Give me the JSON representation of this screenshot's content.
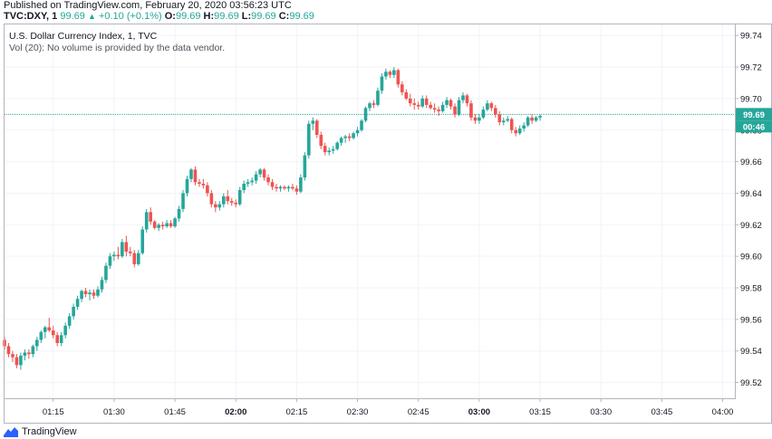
{
  "header": {
    "published": "Published on TradingView.com, February 20, 2020 03:56:23 UTC",
    "symbol": "TVC:DXY, 1",
    "last": "99.69",
    "change": "+0.10 (+0.1%)",
    "o_label": "O:",
    "o_value": "99.69",
    "h_label": "H:",
    "h_value": "99.69",
    "l_label": "L:",
    "l_value": "99.69",
    "c_label": "C:",
    "c_value": "99.69"
  },
  "legend": {
    "title": "U.S. Dollar Currency Index, 1, TVC",
    "volume_note": "Vol (20): No volume is provided by the data vendor."
  },
  "price_badge": {
    "price": "99.69",
    "countdown": "00:46"
  },
  "footer": {
    "brand": "TradingView",
    "logo_icon": "tradingview-logo-icon"
  },
  "colors": {
    "up": "#26a69a",
    "down": "#ef5350",
    "grid": "#f0f3fa",
    "price_line": "#26a69a"
  },
  "chart_data": {
    "type": "candlestick",
    "y_ticks": [
      "99.74",
      "99.72",
      "99.70",
      "99.68",
      "99.66",
      "99.64",
      "99.62",
      "99.60",
      "99.58",
      "99.56",
      "99.54",
      "99.52"
    ],
    "x_ticks": [
      "01:15",
      "01:30",
      "01:45",
      "02:00",
      "02:15",
      "02:30",
      "02:45",
      "03:00",
      "03:15",
      "03:30",
      "03:45",
      "04:00"
    ],
    "ylim": [
      99.51,
      99.747
    ],
    "x_range_minutes": [
      63,
      243
    ],
    "tick_minutes": [
      75,
      90,
      105,
      120,
      135,
      150,
      165,
      180,
      195,
      210,
      225,
      240
    ],
    "grid": true,
    "last_price": 99.69,
    "candles": [
      [
        63,
        99.547,
        99.549,
        99.541,
        99.543
      ],
      [
        64,
        99.543,
        99.545,
        99.536,
        99.538
      ],
      [
        65,
        99.538,
        99.54,
        99.533,
        99.536
      ],
      [
        66,
        99.536,
        99.538,
        99.529,
        99.531
      ],
      [
        67,
        99.531,
        99.539,
        99.528,
        99.537
      ],
      [
        68,
        99.537,
        99.541,
        99.534,
        99.539
      ],
      [
        69,
        99.539,
        99.541,
        99.535,
        99.538
      ],
      [
        70,
        99.538,
        99.544,
        99.536,
        99.543
      ],
      [
        71,
        99.543,
        99.549,
        99.54,
        99.547
      ],
      [
        72,
        99.547,
        99.553,
        99.545,
        99.552
      ],
      [
        73,
        99.552,
        99.556,
        99.548,
        99.555
      ],
      [
        74,
        99.555,
        99.561,
        99.552,
        99.553
      ],
      [
        75,
        99.553,
        99.556,
        99.548,
        99.55
      ],
      [
        76,
        99.55,
        99.552,
        99.543,
        99.545
      ],
      [
        77,
        99.545,
        99.552,
        99.543,
        99.55
      ],
      [
        78,
        99.55,
        99.558,
        99.548,
        99.556
      ],
      [
        79,
        99.556,
        99.564,
        99.554,
        99.562
      ],
      [
        80,
        99.562,
        99.57,
        99.56,
        99.568
      ],
      [
        81,
        99.568,
        99.575,
        99.566,
        99.573
      ],
      [
        82,
        99.573,
        99.579,
        99.571,
        99.578
      ],
      [
        83,
        99.578,
        99.58,
        99.574,
        99.576
      ],
      [
        84,
        99.576,
        99.579,
        99.572,
        99.577
      ],
      [
        85,
        99.577,
        99.579,
        99.573,
        99.575
      ],
      [
        86,
        99.575,
        99.581,
        99.574,
        99.579
      ],
      [
        87,
        99.579,
        99.587,
        99.577,
        99.585
      ],
      [
        88,
        99.585,
        99.596,
        99.583,
        99.594
      ],
      [
        89,
        99.594,
        99.602,
        99.592,
        99.6
      ],
      [
        90,
        99.6,
        99.603,
        99.597,
        99.601
      ],
      [
        91,
        99.601,
        99.606,
        99.598,
        99.6
      ],
      [
        92,
        99.6,
        99.611,
        99.599,
        99.609
      ],
      [
        93,
        99.609,
        99.613,
        99.6,
        99.603
      ],
      [
        94,
        99.603,
        99.606,
        99.6,
        99.602
      ],
      [
        95,
        99.602,
        99.604,
        99.593,
        99.595
      ],
      [
        96,
        99.595,
        99.604,
        99.594,
        99.602
      ],
      [
        97,
        99.602,
        99.619,
        99.601,
        99.617
      ],
      [
        98,
        99.617,
        99.63,
        99.615,
        99.628
      ],
      [
        99,
        99.628,
        99.631,
        99.62,
        99.622
      ],
      [
        100,
        99.622,
        99.623,
        99.617,
        99.618
      ],
      [
        101,
        99.618,
        99.621,
        99.616,
        99.62
      ],
      [
        102,
        99.62,
        99.622,
        99.617,
        99.619
      ],
      [
        103,
        99.619,
        99.623,
        99.618,
        99.621
      ],
      [
        104,
        99.621,
        99.623,
        99.618,
        99.619
      ],
      [
        105,
        99.619,
        99.625,
        99.618,
        99.624
      ],
      [
        106,
        99.624,
        99.632,
        99.622,
        99.63
      ],
      [
        107,
        99.63,
        99.642,
        99.628,
        99.64
      ],
      [
        108,
        99.64,
        99.651,
        99.638,
        99.649
      ],
      [
        109,
        99.649,
        99.656,
        99.647,
        99.655
      ],
      [
        110,
        99.655,
        99.657,
        99.645,
        99.647
      ],
      [
        111,
        99.647,
        99.649,
        99.644,
        99.646
      ],
      [
        112,
        99.646,
        99.649,
        99.643,
        99.645
      ],
      [
        113,
        99.645,
        99.647,
        99.638,
        99.64
      ],
      [
        114,
        99.64,
        99.642,
        99.631,
        99.633
      ],
      [
        115,
        99.633,
        99.635,
        99.628,
        99.631
      ],
      [
        116,
        99.631,
        99.635,
        99.629,
        99.633
      ],
      [
        117,
        99.633,
        99.64,
        99.631,
        99.638
      ],
      [
        118,
        99.638,
        99.642,
        99.633,
        99.635
      ],
      [
        119,
        99.635,
        99.637,
        99.632,
        99.634
      ],
      [
        120,
        99.634,
        99.636,
        99.631,
        99.633
      ],
      [
        121,
        99.633,
        99.644,
        99.632,
        99.642
      ],
      [
        122,
        99.642,
        99.648,
        99.64,
        99.646
      ],
      [
        123,
        99.646,
        99.649,
        99.644,
        99.647
      ],
      [
        124,
        99.647,
        99.65,
        99.645,
        99.648
      ],
      [
        125,
        99.648,
        99.654,
        99.646,
        99.652
      ],
      [
        126,
        99.652,
        99.656,
        99.65,
        99.655
      ],
      [
        127,
        99.655,
        99.656,
        99.648,
        99.65
      ],
      [
        128,
        99.65,
        99.652,
        99.645,
        99.647
      ],
      [
        129,
        99.647,
        99.649,
        99.642,
        99.644
      ],
      [
        130,
        99.644,
        99.646,
        99.641,
        99.643
      ],
      [
        131,
        99.643,
        99.645,
        99.641,
        99.644
      ],
      [
        132,
        99.644,
        99.645,
        99.642,
        99.643
      ],
      [
        133,
        99.643,
        99.645,
        99.641,
        99.644
      ],
      [
        134,
        99.644,
        99.646,
        99.642,
        99.643
      ],
      [
        135,
        99.643,
        99.645,
        99.639,
        99.641
      ],
      [
        136,
        99.641,
        99.652,
        99.64,
        99.65
      ],
      [
        137,
        99.65,
        99.666,
        99.648,
        99.664
      ],
      [
        138,
        99.664,
        99.686,
        99.662,
        99.684
      ],
      [
        139,
        99.684,
        99.688,
        99.68,
        99.686
      ],
      [
        140,
        99.686,
        99.687,
        99.675,
        99.677
      ],
      [
        141,
        99.677,
        99.679,
        99.668,
        99.67
      ],
      [
        142,
        99.67,
        99.672,
        99.664,
        99.666
      ],
      [
        143,
        99.666,
        99.669,
        99.664,
        99.667
      ],
      [
        144,
        99.667,
        99.67,
        99.665,
        99.668
      ],
      [
        145,
        99.668,
        99.673,
        99.667,
        99.672
      ],
      [
        146,
        99.672,
        99.676,
        99.67,
        99.675
      ],
      [
        147,
        99.675,
        99.677,
        99.672,
        99.676
      ],
      [
        148,
        99.676,
        99.678,
        99.673,
        99.675
      ],
      [
        149,
        99.675,
        99.679,
        99.674,
        99.678
      ],
      [
        150,
        99.678,
        99.682,
        99.676,
        99.68
      ],
      [
        151,
        99.68,
        99.687,
        99.679,
        99.686
      ],
      [
        152,
        99.686,
        99.695,
        99.685,
        99.694
      ],
      [
        153,
        99.694,
        99.698,
        99.692,
        99.697
      ],
      [
        154,
        99.697,
        99.699,
        99.694,
        99.696
      ],
      [
        155,
        99.696,
        99.707,
        99.695,
        99.705
      ],
      [
        156,
        99.705,
        99.716,
        99.703,
        99.714
      ],
      [
        157,
        99.714,
        99.719,
        99.712,
        99.717
      ],
      [
        158,
        99.717,
        99.718,
        99.713,
        99.715
      ],
      [
        159,
        99.715,
        99.72,
        99.713,
        99.718
      ],
      [
        160,
        99.718,
        99.719,
        99.707,
        99.709
      ],
      [
        161,
        99.709,
        99.711,
        99.702,
        99.704
      ],
      [
        162,
        99.704,
        99.706,
        99.699,
        99.7
      ],
      [
        163,
        99.7,
        99.703,
        99.695,
        99.697
      ],
      [
        164,
        99.697,
        99.7,
        99.693,
        99.696
      ],
      [
        165,
        99.696,
        99.698,
        99.693,
        99.695
      ],
      [
        166,
        99.695,
        99.702,
        99.694,
        99.7
      ],
      [
        167,
        99.7,
        99.702,
        99.694,
        99.696
      ],
      [
        168,
        99.696,
        99.698,
        99.693,
        99.694
      ],
      [
        169,
        99.694,
        99.697,
        99.691,
        99.693
      ],
      [
        170,
        99.693,
        99.695,
        99.689,
        99.692
      ],
      [
        171,
        99.692,
        99.698,
        99.691,
        99.696
      ],
      [
        172,
        99.696,
        99.701,
        99.694,
        99.699
      ],
      [
        173,
        99.699,
        99.7,
        99.693,
        99.695
      ],
      [
        174,
        99.695,
        99.697,
        99.688,
        99.69
      ],
      [
        175,
        99.69,
        99.701,
        99.689,
        99.699
      ],
      [
        176,
        99.699,
        99.704,
        99.697,
        99.702
      ],
      [
        177,
        99.702,
        99.703,
        99.695,
        99.697
      ],
      [
        178,
        99.697,
        99.699,
        99.686,
        99.688
      ],
      [
        179,
        99.688,
        99.69,
        99.684,
        99.686
      ],
      [
        180,
        99.686,
        99.69,
        99.684,
        99.688
      ],
      [
        181,
        99.688,
        99.695,
        99.687,
        99.693
      ],
      [
        182,
        99.693,
        99.699,
        99.692,
        99.697
      ],
      [
        183,
        99.697,
        99.698,
        99.692,
        99.694
      ],
      [
        184,
        99.694,
        99.696,
        99.688,
        99.69
      ],
      [
        185,
        99.69,
        99.692,
        99.683,
        99.685
      ],
      [
        186,
        99.685,
        99.688,
        99.683,
        99.686
      ],
      [
        187,
        99.686,
        99.689,
        99.685,
        99.687
      ],
      [
        188,
        99.687,
        99.688,
        99.678,
        99.68
      ],
      [
        189,
        99.68,
        99.682,
        99.676,
        99.678
      ],
      [
        190,
        99.678,
        99.683,
        99.677,
        99.681
      ],
      [
        191,
        99.681,
        99.685,
        99.679,
        99.683
      ],
      [
        192,
        99.683,
        99.689,
        99.682,
        99.688
      ],
      [
        193,
        99.688,
        99.69,
        99.684,
        99.686
      ],
      [
        194,
        99.686,
        99.689,
        99.685,
        99.688
      ],
      [
        195,
        99.688,
        99.69,
        99.686,
        99.689
      ]
    ]
  }
}
